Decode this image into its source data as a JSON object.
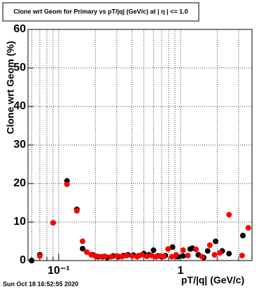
{
  "chart_data": {
    "type": "scatter",
    "title": "Clone wrt Geom for Primary vs pT/|q| (GeV/c) at | η | <= 1.0",
    "x_label": "pT/|q| (GeV/c)",
    "y_label": "Clone wrt Geom (%)",
    "footer": "Sun Oct 18 16:52:55 2020",
    "xlim": [
      0.056,
      3.86
    ],
    "ylim": [
      0,
      60
    ],
    "xlog": true,
    "grid": true,
    "xticks": [
      {
        "value": 0.1,
        "label": "10⁻¹"
      },
      1
    ],
    "xminorticks": [
      0.06,
      0.07,
      0.08,
      0.09,
      0.2,
      0.3,
      0.4,
      0.5,
      0.6,
      0.7,
      0.8,
      0.9,
      2,
      3
    ],
    "yticks": [
      0,
      10,
      20,
      30,
      40,
      50,
      60
    ],
    "series": [
      {
        "name": "black",
        "color": "#000000",
        "x": [
          0.06,
          0.07,
          0.09,
          0.117,
          0.141,
          0.157,
          0.19,
          0.21,
          0.23,
          0.25,
          0.28,
          0.31,
          0.34,
          0.37,
          0.41,
          0.45,
          0.5,
          0.55,
          0.6,
          0.65,
          0.7,
          0.75,
          0.86,
          0.95,
          1.05,
          1.2,
          1.25,
          1.4,
          1.55,
          1.67,
          1.94,
          2.2,
          2.5,
          3.25
        ],
        "values": [
          0,
          1.5,
          9.8,
          20.7,
          13.3,
          3.1,
          1.5,
          1.0,
          1.0,
          0.8,
          1.2,
          1.0,
          1.3,
          1.5,
          1.4,
          1.2,
          1.8,
          1.5,
          2.7,
          1.2,
          1.0,
          1.3,
          3.5,
          1.0,
          1.2,
          3.0,
          3.2,
          1.5,
          0.8,
          2.5,
          5.0,
          2.5,
          1.8,
          6.5
        ]
      },
      {
        "name": "red",
        "color": "#ff0000",
        "x": [
          0.07,
          0.09,
          0.117,
          0.141,
          0.157,
          0.17,
          0.185,
          0.2,
          0.22,
          0.24,
          0.27,
          0.3,
          0.33,
          0.36,
          0.4,
          0.44,
          0.48,
          0.53,
          0.58,
          0.63,
          0.68,
          0.73,
          0.79,
          0.85,
          0.92,
          1.05,
          1.15,
          1.34,
          1.5,
          1.74,
          1.9,
          2.1,
          2.5,
          3.2,
          3.6
        ],
        "values": [
          1.2,
          9.8,
          19.8,
          12.9,
          5.0,
          2.2,
          1.5,
          1.2,
          1.0,
          1.1,
          1.0,
          1.2,
          1.0,
          1.3,
          1.2,
          1.0,
          1.5,
          1.1,
          1.3,
          1.0,
          1.2,
          1.1,
          3.0,
          1.0,
          1.5,
          2.7,
          1.3,
          2.9,
          1.0,
          4.0,
          1.5,
          2.0,
          11.9,
          1.3,
          8.5
        ]
      }
    ]
  }
}
